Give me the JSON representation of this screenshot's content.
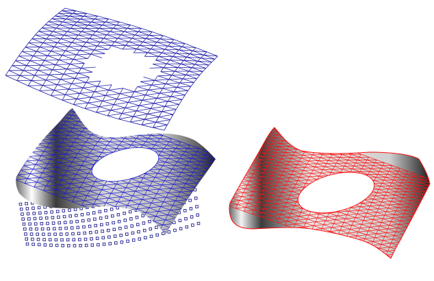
{
  "colors": {
    "background": "#ffffff",
    "wire_mesh": "#1a1aa8",
    "shaded_mesh_lines": "#1a1ad0",
    "points": "#1a1a8c",
    "red_mesh": "#ff1010",
    "shade_light": "#ffffff",
    "shade_dark": "#2a2a2a"
  },
  "objects": [
    {
      "name": "wireframe-surface",
      "kind": "triangulated wireframe with hole"
    },
    {
      "name": "shaded-surface",
      "kind": "gouraud shaded surface with blue triangle mesh"
    },
    {
      "name": "point-cloud",
      "kind": "sample points (squares)"
    },
    {
      "name": "red-mesh-surface",
      "kind": "shaded surface with red triangle mesh"
    }
  ]
}
